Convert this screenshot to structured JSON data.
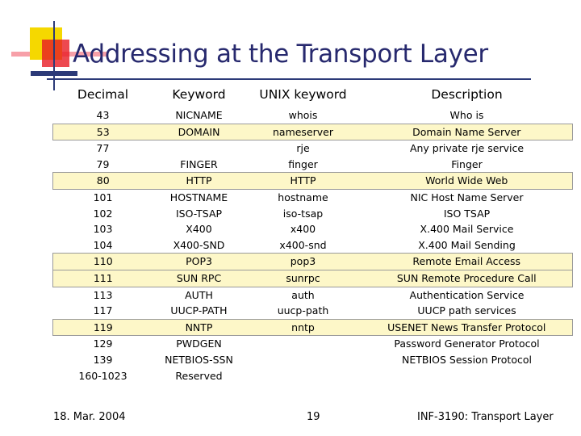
{
  "slide": {
    "title": "Addressing at the Transport Layer"
  },
  "table": {
    "headers": [
      "Decimal",
      "Keyword",
      "UNIX keyword",
      "Description"
    ],
    "rows": [
      [
        "43",
        "NICNAME",
        "whois",
        "Who is"
      ],
      [
        "53",
        "DOMAIN",
        "nameserver",
        "Domain Name Server"
      ],
      [
        "77",
        "",
        "rje",
        "Any private rje service"
      ],
      [
        "79",
        "FINGER",
        "finger",
        "Finger"
      ],
      [
        "80",
        "HTTP",
        "HTTP",
        "World Wide Web"
      ],
      [
        "101",
        "HOSTNAME",
        "hostname",
        "NIC Host Name Server"
      ],
      [
        "102",
        "ISO-TSAP",
        "iso-tsap",
        "ISO TSAP"
      ],
      [
        "103",
        "X400",
        "x400",
        "X.400 Mail Service"
      ],
      [
        "104",
        "X400-SND",
        "x400-snd",
        "X.400 Mail Sending"
      ],
      [
        "110",
        "POP3",
        "pop3",
        "Remote Email Access"
      ],
      [
        "111",
        "SUN RPC",
        "sunrpc",
        "SUN Remote Procedure Call"
      ],
      [
        "113",
        "AUTH",
        "auth",
        "Authentication Service"
      ],
      [
        "117",
        "UUCP-PATH",
        "uucp-path",
        "UUCP path services"
      ],
      [
        "119",
        "NNTP",
        "nntp",
        "USENET News Transfer Protocol"
      ],
      [
        "129",
        "PWDGEN",
        "",
        "Password Generator Protocol"
      ],
      [
        "139",
        "NETBIOS-SSN",
        "",
        "NETBIOS Session Protocol"
      ],
      [
        "160-1023",
        "Reserved",
        "",
        ""
      ]
    ],
    "highlighted_ports": [
      "53",
      "80",
      "110",
      "111",
      "119"
    ]
  },
  "footer": {
    "date": "18. Mar. 2004",
    "page": "19",
    "course": "INF-3190: Transport Layer"
  }
}
